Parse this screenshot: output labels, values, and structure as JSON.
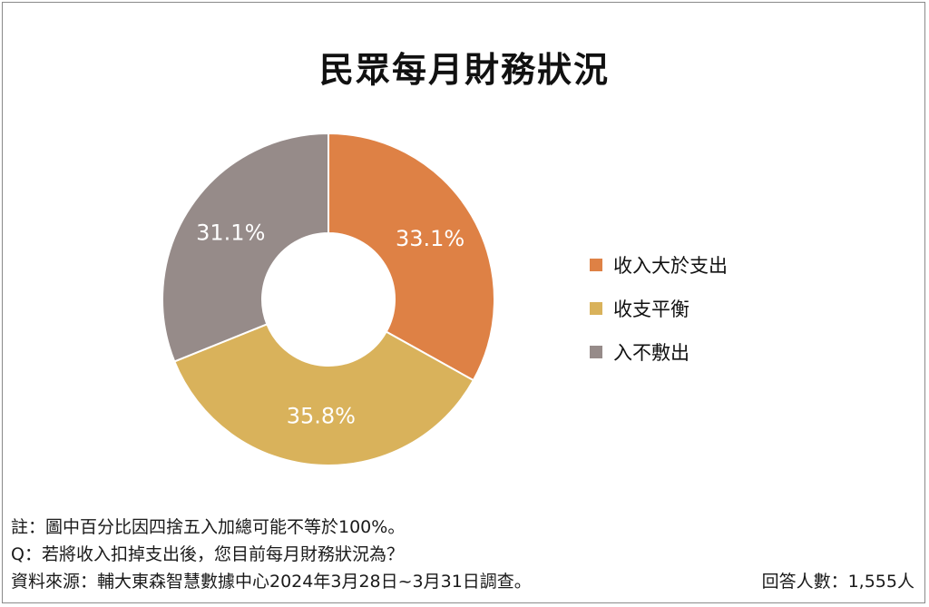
{
  "chart_data": {
    "type": "pie",
    "title": "民眾每月財務狀況",
    "categories": [
      "收入大於支出",
      "收支平衡",
      "入不敷出"
    ],
    "values": [
      33.1,
      35.8,
      31.1
    ],
    "value_labels": [
      "33.1%",
      "35.8%",
      "31.1%"
    ],
    "colors": [
      "#DE8145",
      "#D9B25B",
      "#968B89"
    ],
    "donut": true,
    "legend_position": "right"
  },
  "notes": {
    "rounding": "註：圖中百分比因四捨五入加總可能不等於100%。",
    "question": "Q：若將收入扣掉支出後，您目前每月財務狀況為？",
    "source": "資料來源：輔大東森智慧數據中心2024年3月28日~3月31日調查。",
    "respondents": "回答人數：1,555人"
  }
}
